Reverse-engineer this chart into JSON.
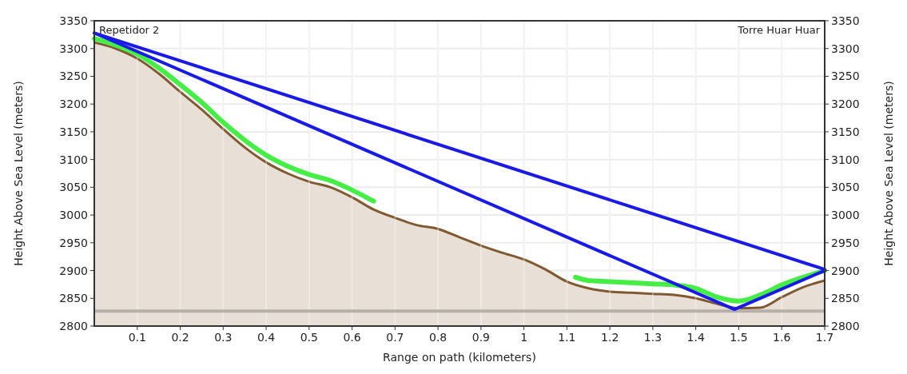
{
  "chart_data": {
    "type": "line",
    "xlabel": "Range on path (kilometers)",
    "ylabel": "Height Above Sea Level (meters)",
    "y2label": "Height Above Sea Level (meters)",
    "xlim": [
      0,
      1.7
    ],
    "xticks": [
      0.1,
      0.2,
      0.3,
      0.4,
      0.5,
      0.6,
      0.7,
      0.8,
      0.9,
      1,
      1.1,
      1.2,
      1.3,
      1.4,
      1.5,
      1.6,
      1.7
    ],
    "ylim": [
      2800,
      3350
    ],
    "yticks": [
      2800,
      2850,
      2900,
      2950,
      3000,
      3050,
      3100,
      3150,
      3200,
      3250,
      3300,
      3350
    ],
    "y2lim": [
      2800,
      3350
    ],
    "y2ticks": [
      2800,
      2850,
      2900,
      2950,
      3000,
      3050,
      3100,
      3150,
      3200,
      3250,
      3300,
      3350
    ],
    "grid": true,
    "annotations": [
      "Repetidor 2",
      "Torre Huar Huar"
    ],
    "ref_lines": [
      {
        "axis": "y",
        "value": 2827,
        "color": "#b5b0ab"
      }
    ],
    "series": [
      {
        "type": "area",
        "color": "#e8dfd6",
        "x": [
          0,
          0.05,
          0.1,
          0.15,
          0.2,
          0.25,
          0.3,
          0.35,
          0.4,
          0.45,
          0.5,
          0.55,
          0.6,
          0.65,
          0.7,
          0.75,
          0.8,
          0.85,
          0.9,
          0.95,
          1,
          1.05,
          1.1,
          1.15,
          1.2,
          1.25,
          1.3,
          1.35,
          1.4,
          1.45,
          1.5,
          1.55,
          1.6,
          1.65,
          1.7
        ],
        "values": [
          3311,
          3300,
          3282,
          3255,
          3222,
          3190,
          3155,
          3122,
          3095,
          3075,
          3060,
          3050,
          3032,
          3010,
          2995,
          2982,
          2975,
          2960,
          2945,
          2932,
          2920,
          2902,
          2880,
          2868,
          2862,
          2860,
          2858,
          2856,
          2850,
          2840,
          2832,
          2833,
          2852,
          2870,
          2882
        ]
      },
      {
        "color": "#44ee44",
        "x": [
          0,
          0.05,
          0.1,
          0.15,
          0.2,
          0.25,
          0.3,
          0.35,
          0.4,
          0.45,
          0.5,
          0.55,
          0.6,
          0.65,
          0.66,
          1.12,
          1.15,
          1.2,
          1.25,
          1.3,
          1.35,
          1.4,
          1.45,
          1.5,
          1.55,
          1.6,
          1.65,
          1.7
        ],
        "values": [
          3318,
          3306,
          3290,
          3265,
          3235,
          3203,
          3167,
          3135,
          3108,
          3088,
          3073,
          3062,
          3045,
          3025,
          null,
          2888,
          2882,
          2880,
          2878,
          2876,
          2874,
          2868,
          2852,
          2845,
          2856,
          2874,
          2888,
          2900
        ]
      },
      {
        "color": "#1a1ae6",
        "x": [
          0,
          1.7
        ],
        "values": [
          3328,
          2902
        ]
      },
      {
        "color": "#1a1ae6",
        "x": [
          0,
          1.49,
          1.7
        ],
        "values": [
          3328,
          2830,
          2900
        ]
      }
    ]
  }
}
